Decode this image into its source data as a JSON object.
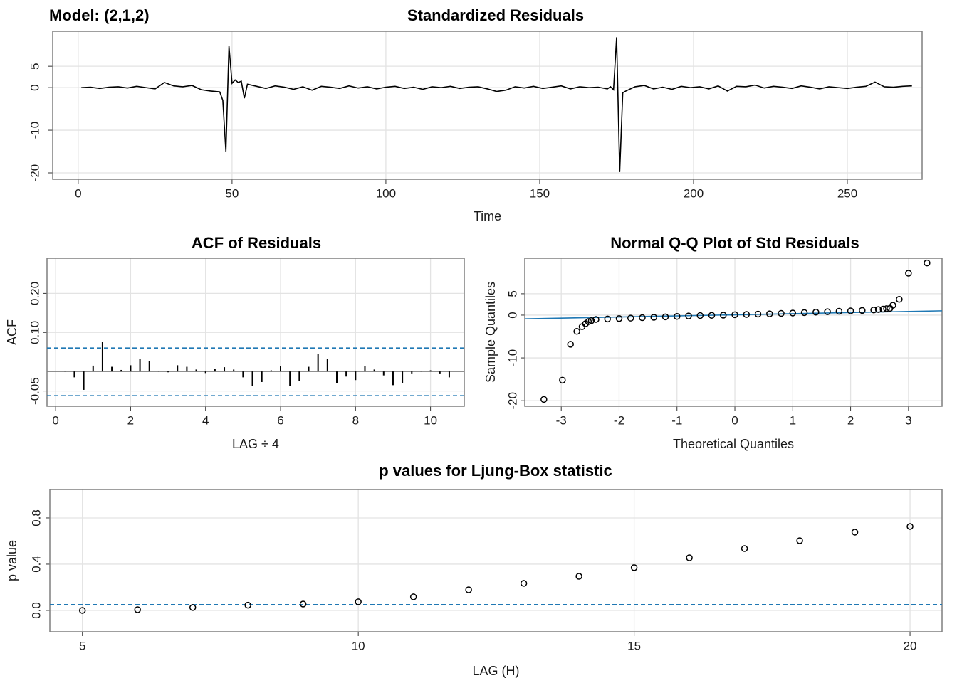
{
  "chart_data": [
    {
      "type": "line",
      "title": "Standardized Residuals",
      "annotation": "Model: (2,1,2)",
      "x_label": "Time",
      "x": [
        1,
        4,
        7,
        10,
        13,
        16,
        19,
        22,
        25,
        28,
        31,
        34,
        37,
        40,
        43,
        46,
        47,
        48,
        49,
        50,
        51,
        52,
        53,
        54,
        55,
        58,
        61,
        64,
        67,
        70,
        73,
        76,
        79,
        82,
        85,
        88,
        91,
        94,
        97,
        100,
        103,
        106,
        109,
        112,
        115,
        118,
        121,
        124,
        127,
        130,
        133,
        136,
        139,
        142,
        145,
        148,
        151,
        154,
        157,
        160,
        163,
        166,
        169,
        172,
        173,
        174,
        175,
        176,
        177,
        178,
        181,
        184,
        187,
        190,
        193,
        196,
        199,
        202,
        205,
        208,
        211,
        214,
        217,
        220,
        223,
        226,
        229,
        232,
        235,
        238,
        241,
        244,
        247,
        250,
        253,
        256,
        259,
        262,
        265,
        268,
        271
      ],
      "values": [
        0,
        0.1,
        -0.2,
        0.1,
        0.2,
        -0.1,
        0.3,
        0,
        -0.3,
        1.2,
        0.4,
        0.2,
        0.5,
        -0.5,
        -0.8,
        -1,
        -3,
        -15,
        9.7,
        1,
        1.8,
        1.2,
        1.5,
        -2.5,
        0.8,
        0.3,
        -0.2,
        0.4,
        0.1,
        -0.4,
        0.2,
        -0.6,
        0.3,
        0.1,
        -0.2,
        0.4,
        -0.1,
        0.2,
        -0.3,
        0.1,
        0.3,
        -0.2,
        0.1,
        -0.4,
        0.2,
        0,
        0.3,
        -0.2,
        0.1,
        0.2,
        -0.3,
        -0.9,
        -0.6,
        0.2,
        -0.1,
        0.3,
        -0.2,
        0.1,
        0.4,
        -0.3,
        0.2,
        0,
        0.1,
        -0.3,
        0.2,
        -0.5,
        11.8,
        -19.8,
        -1.2,
        -0.8,
        0.2,
        0.5,
        -0.3,
        0.1,
        -0.4,
        0.3,
        0,
        0.2,
        -0.3,
        0.4,
        -0.8,
        0.3,
        0.2,
        0.6,
        -0.1,
        0.3,
        0.1,
        -0.2,
        0.4,
        0.1,
        -0.3,
        0.2,
        0,
        -0.2,
        0.1,
        0.3,
        1.3,
        0.2,
        0.1,
        0.3,
        0.4
      ],
      "color": "#000000",
      "xlim": [
        -8.3,
        274.3
      ],
      "ylim": [
        -21.5,
        13.2
      ],
      "xticks": [
        0,
        50,
        100,
        150,
        200,
        250
      ],
      "yticks": [
        -20,
        -10,
        0,
        5
      ],
      "grid": true
    },
    {
      "type": "bar",
      "title": "ACF of Residuals",
      "x_label": "LAG ÷ 4",
      "y_label": "ACF",
      "x": [
        0.25,
        0.5,
        0.75,
        1,
        1.25,
        1.5,
        1.75,
        2,
        2.25,
        2.5,
        2.75,
        3,
        3.25,
        3.5,
        3.75,
        4,
        4.25,
        4.5,
        4.75,
        5,
        5.25,
        5.5,
        5.75,
        6,
        6.25,
        6.5,
        6.75,
        7,
        7.25,
        7.5,
        7.75,
        8,
        8.25,
        8.5,
        8.75,
        9,
        9.25,
        9.5,
        9.75,
        10,
        10.25,
        10.5
      ],
      "values": [
        0.002,
        -0.015,
        -0.047,
        0.015,
        0.075,
        0.012,
        0.004,
        0.016,
        0.033,
        0.027,
        0.001,
        -0.002,
        0.016,
        0.012,
        0.005,
        -0.004,
        0.006,
        0.011,
        0.005,
        -0.015,
        -0.038,
        -0.027,
        0.003,
        0.013,
        -0.038,
        -0.025,
        0.012,
        0.045,
        0.032,
        -0.03,
        -0.013,
        -0.022,
        0.013,
        0.005,
        -0.01,
        -0.035,
        -0.03,
        -0.005,
        0.002,
        0.003,
        -0.005,
        -0.015
      ],
      "color": "#000000",
      "ci_lines": [
        0.06,
        -0.062
      ],
      "ci_color": "#1f78b4",
      "xlim": [
        -0.23,
        10.9
      ],
      "ylim": [
        -0.089,
        0.29
      ],
      "xticks": [
        0,
        2,
        4,
        6,
        8,
        10
      ],
      "yticks": [
        -0.05,
        {
          "value": 0.1,
          "label": "0.10"
        },
        {
          "value": 0.2,
          "label": "0.20"
        }
      ],
      "grid": true
    },
    {
      "type": "scatter",
      "title": "Normal Q-Q Plot of Std Residuals",
      "x_label": "Theoretical Quantiles",
      "y_label": "Sample Quantiles",
      "x": [
        -3.3,
        -2.98,
        -2.84,
        -2.73,
        -2.64,
        -2.58,
        -2.53,
        -2.48,
        -2.4,
        -2.2,
        -2,
        -1.8,
        -1.6,
        -1.4,
        -1.2,
        -1,
        -0.8,
        -0.6,
        -0.4,
        -0.2,
        0,
        0.2,
        0.4,
        0.6,
        0.8,
        1,
        1.2,
        1.4,
        1.6,
        1.8,
        2,
        2.2,
        2.4,
        2.48,
        2.56,
        2.62,
        2.68,
        2.73,
        2.84,
        3,
        3.32
      ],
      "values": [
        -19.7,
        -15.2,
        -6.8,
        -3.8,
        -2.7,
        -2,
        -1.5,
        -1.3,
        -1,
        -0.9,
        -0.8,
        -0.7,
        -0.6,
        -0.5,
        -0.4,
        -0.3,
        -0.2,
        -0.1,
        -0.05,
        0,
        0.1,
        0.15,
        0.25,
        0.3,
        0.4,
        0.5,
        0.6,
        0.7,
        0.8,
        0.9,
        1,
        1.1,
        1.2,
        1.3,
        1.4,
        1.5,
        1.6,
        2.3,
        3.7,
        9.8,
        12.2
      ],
      "color": "#000000",
      "qq_line": {
        "intercept": 0.08,
        "slope": 0.26,
        "color": "#1f78b4"
      },
      "xlim": [
        -3.63,
        3.58
      ],
      "ylim": [
        -21.3,
        13.3
      ],
      "xticks": [
        -3,
        -2,
        -1,
        0,
        1,
        2,
        3
      ],
      "yticks": [
        -20,
        -10,
        0,
        5
      ],
      "grid": true
    },
    {
      "type": "scatter",
      "title": "p values for Ljung-Box statistic",
      "x_label": "LAG (H)",
      "y_label": "p value",
      "x": [
        5,
        6,
        7,
        8,
        9,
        10,
        11,
        12,
        13,
        14,
        15,
        16,
        17,
        18,
        19,
        20
      ],
      "values": [
        0,
        0.006,
        0.025,
        0.045,
        0.055,
        0.074,
        0.117,
        0.178,
        0.234,
        0.295,
        0.37,
        0.455,
        0.535,
        0.603,
        0.677,
        0.726
      ],
      "color": "#000000",
      "reference_line": 0.05,
      "reference_color": "#1f78b4",
      "xlim": [
        4.41,
        20.58
      ],
      "ylim": [
        -0.185,
        1.046
      ],
      "xticks": [
        5,
        10,
        15,
        20
      ],
      "yticks": [
        {
          "value": 0,
          "label": "0.0"
        },
        0.4,
        {
          "value": 0.8,
          "label": "0.8"
        }
      ],
      "grid": true
    }
  ]
}
